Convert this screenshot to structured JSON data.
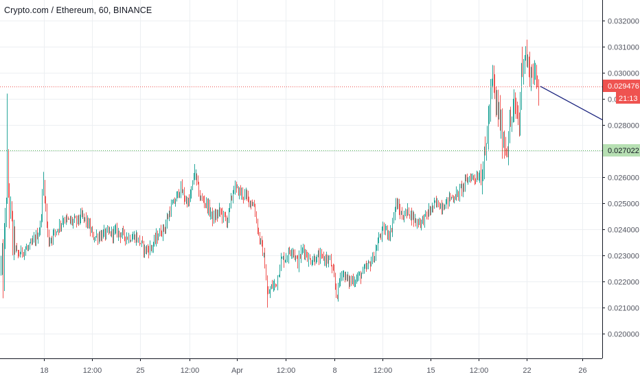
{
  "header": {
    "title": "Crypto.com / Ethereum, 60, BINANCE"
  },
  "colors": {
    "up": "#26a69a",
    "down": "#ef5350",
    "candle_body_up": "#ffffff",
    "candle_body_down": "#ef5350",
    "wick": "#606060",
    "grid": "#eceff2",
    "resistance_line": "#ef5350",
    "support_line": "#4caf50",
    "trend_line": "#1a237e",
    "axis_text": "#50535e"
  },
  "price_labels": {
    "current_price": "0.029476",
    "countdown": "21:13",
    "support_price": "0.027022"
  },
  "chart_data": {
    "type": "candlestick",
    "title": "Crypto.com / Ethereum, 60, BINANCE",
    "y_axis": {
      "ticks": [
        "0.032000",
        "0.031000",
        "0.030000",
        "0.029000",
        "0.028000",
        "0.027000",
        "0.026000",
        "0.025000",
        "0.024000",
        "0.023000",
        "0.022000",
        "0.021000",
        "0.020000"
      ],
      "ylim": [
        0.0191,
        0.0325
      ]
    },
    "x_axis": {
      "ticks": [
        "18",
        "12:00",
        "25",
        "12:00",
        "Apr",
        "12:00",
        "8",
        "12:00",
        "15",
        "12:00",
        "22",
        "26"
      ]
    },
    "horizontal_lines": [
      {
        "name": "resistance",
        "value": 0.029476,
        "style": "dotted",
        "color": "#ef5350"
      },
      {
        "name": "support",
        "value": 0.027022,
        "style": "dotted",
        "color": "#4caf50"
      }
    ],
    "trend_line": {
      "from": {
        "x": "22",
        "y": 0.02948
      },
      "to": {
        "x": "26",
        "y": 0.0282
      }
    },
    "close_path": [
      [
        0,
        0.0227
      ],
      [
        4,
        0.0222
      ],
      [
        10,
        0.0262
      ],
      [
        13,
        0.0251
      ],
      [
        18,
        0.0236
      ],
      [
        25,
        0.023
      ],
      [
        34,
        0.0232
      ],
      [
        43,
        0.0233
      ],
      [
        50,
        0.0236
      ],
      [
        58,
        0.024
      ],
      [
        63,
        0.0258
      ],
      [
        70,
        0.0235
      ],
      [
        77,
        0.0238
      ],
      [
        85,
        0.0241
      ],
      [
        92,
        0.0244
      ],
      [
        101,
        0.0243
      ],
      [
        110,
        0.0243
      ],
      [
        120,
        0.0245
      ],
      [
        128,
        0.0242
      ],
      [
        135,
        0.0237
      ],
      [
        150,
        0.0238
      ],
      [
        170,
        0.0239
      ],
      [
        185,
        0.0237
      ],
      [
        198,
        0.0237
      ],
      [
        211,
        0.0232
      ],
      [
        220,
        0.0233
      ],
      [
        230,
        0.0238
      ],
      [
        240,
        0.0241
      ],
      [
        248,
        0.0248
      ],
      [
        255,
        0.0251
      ],
      [
        262,
        0.0256
      ],
      [
        268,
        0.0252
      ],
      [
        275,
        0.025
      ],
      [
        283,
        0.0262
      ],
      [
        291,
        0.0252
      ],
      [
        300,
        0.025
      ],
      [
        310,
        0.0244
      ],
      [
        320,
        0.0247
      ],
      [
        330,
        0.0243
      ],
      [
        340,
        0.0256
      ],
      [
        350,
        0.0254
      ],
      [
        360,
        0.0252
      ],
      [
        370,
        0.0249
      ],
      [
        376,
        0.0238
      ],
      [
        380,
        0.0234
      ],
      [
        385,
        0.0228
      ],
      [
        389,
        0.0214
      ],
      [
        395,
        0.0218
      ],
      [
        402,
        0.0219
      ],
      [
        408,
        0.0228
      ],
      [
        415,
        0.0229
      ],
      [
        425,
        0.0233
      ],
      [
        433,
        0.0227
      ],
      [
        441,
        0.0233
      ],
      [
        450,
        0.0228
      ],
      [
        460,
        0.0229
      ],
      [
        470,
        0.0229
      ],
      [
        480,
        0.0228
      ],
      [
        486,
        0.0221
      ],
      [
        490,
        0.0214
      ],
      [
        497,
        0.0224
      ],
      [
        507,
        0.022
      ],
      [
        518,
        0.0221
      ],
      [
        527,
        0.0223
      ],
      [
        536,
        0.0226
      ],
      [
        545,
        0.023
      ],
      [
        553,
        0.0238
      ],
      [
        560,
        0.024
      ],
      [
        568,
        0.0238
      ],
      [
        576,
        0.025
      ],
      [
        585,
        0.0245
      ],
      [
        595,
        0.0247
      ],
      [
        605,
        0.0243
      ],
      [
        614,
        0.0243
      ],
      [
        625,
        0.0247
      ],
      [
        635,
        0.025
      ],
      [
        645,
        0.0249
      ],
      [
        655,
        0.0252
      ],
      [
        665,
        0.0253
      ],
      [
        675,
        0.0257
      ],
      [
        683,
        0.026
      ],
      [
        692,
        0.026
      ],
      [
        700,
        0.0261
      ],
      [
        706,
        0.0268
      ],
      [
        712,
        0.0285
      ],
      [
        717,
        0.0297
      ],
      [
        722,
        0.0288
      ],
      [
        727,
        0.0283
      ],
      [
        732,
        0.0274
      ],
      [
        738,
        0.0271
      ],
      [
        742,
        0.0279
      ],
      [
        747,
        0.0286
      ],
      [
        752,
        0.0285
      ],
      [
        756,
        0.0281
      ],
      [
        760,
        0.0303
      ],
      [
        764,
        0.0308
      ],
      [
        770,
        0.0301
      ],
      [
        776,
        0.03
      ],
      [
        782,
        0.0296
      ],
      [
        785,
        0.0295
      ]
    ]
  }
}
